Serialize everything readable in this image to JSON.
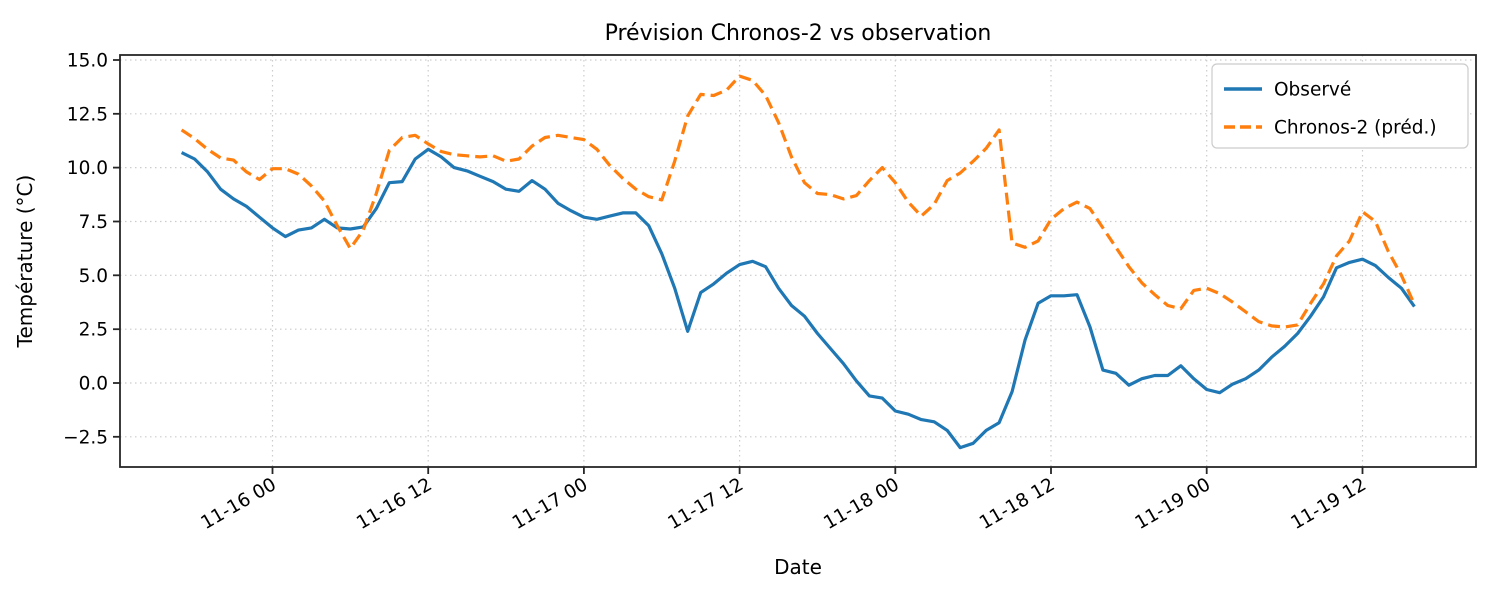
{
  "figure": {
    "background": "#ffffff",
    "spine_color": "#262626",
    "grid_color": "#cccccc",
    "text_color": "#000000"
  },
  "chart_data": {
    "type": "line",
    "title": "Prévision Chronos-2 vs observation",
    "xlabel": "Date",
    "ylabel": "Température (°C)",
    "x_count": 96,
    "x_tick_indices": [
      7,
      19,
      31,
      43,
      55,
      67,
      79,
      91
    ],
    "x_tick_labels": [
      "11-16 00",
      "11-16 12",
      "11-17 00",
      "11-17 12",
      "11-18 00",
      "11-18 12",
      "11-19 00",
      "11-19 12"
    ],
    "y_tick_values": [
      15.0,
      12.5,
      10.0,
      7.5,
      5.0,
      2.5,
      0.0,
      -2.5
    ],
    "y_tick_labels": [
      "15.0",
      "12.5",
      "10.0",
      "7.5",
      "5.0",
      "2.5",
      "0.0",
      "−2.5"
    ],
    "xlim_indices": [
      -4.75,
      99.75
    ],
    "ylim": [
      -3.9,
      15.23
    ],
    "grid": {
      "show": true,
      "style": "dotted",
      "color": "#cccccc"
    },
    "legend": {
      "position": "upper right"
    },
    "series": [
      {
        "name": "Observé",
        "color": "#1f77b4",
        "line_style": "solid",
        "line_width": 3.2,
        "values": [
          10.7,
          10.4,
          9.8,
          9.0,
          8.55,
          8.2,
          7.7,
          7.2,
          6.8,
          7.1,
          7.2,
          7.6,
          7.2,
          7.15,
          7.25,
          8.1,
          9.3,
          9.35,
          10.4,
          10.85,
          10.5,
          10.0,
          9.85,
          9.6,
          9.35,
          9.0,
          8.9,
          9.4,
          9.0,
          8.35,
          8.0,
          7.7,
          7.6,
          7.75,
          7.9,
          7.9,
          7.3,
          6.0,
          4.4,
          2.4,
          4.2,
          4.6,
          5.1,
          5.5,
          5.65,
          5.4,
          4.4,
          3.6,
          3.1,
          2.3,
          1.6,
          0.9,
          0.1,
          -0.6,
          -0.7,
          -1.3,
          -1.45,
          -1.7,
          -1.8,
          -2.2,
          -3.0,
          -2.8,
          -2.2,
          -1.85,
          -0.4,
          2.0,
          3.7,
          4.05,
          4.05,
          4.1,
          2.6,
          0.6,
          0.45,
          -0.1,
          0.2,
          0.35,
          0.35,
          0.8,
          0.2,
          -0.3,
          -0.45,
          -0.05,
          0.2,
          0.6,
          1.2,
          1.7,
          2.3,
          3.1,
          4.0,
          5.35,
          5.6,
          5.75,
          5.45,
          4.9,
          4.4,
          3.55
        ]
      },
      {
        "name": "Chronos-2 (préd.)",
        "color": "#ff7f0e",
        "line_style": "dashed",
        "line_width": 3.2,
        "values": [
          11.75,
          11.35,
          10.85,
          10.45,
          10.35,
          9.8,
          9.45,
          9.95,
          9.95,
          9.7,
          9.15,
          8.45,
          7.3,
          6.25,
          7.1,
          8.8,
          10.8,
          11.4,
          11.5,
          11.1,
          10.75,
          10.6,
          10.55,
          10.5,
          10.55,
          10.3,
          10.4,
          11.0,
          11.4,
          11.5,
          11.4,
          11.3,
          10.85,
          10.1,
          9.5,
          9.0,
          8.65,
          8.5,
          10.3,
          12.4,
          13.4,
          13.35,
          13.6,
          14.25,
          14.05,
          13.35,
          12.1,
          10.5,
          9.3,
          8.8,
          8.75,
          8.55,
          8.7,
          9.4,
          10.0,
          9.3,
          8.4,
          7.75,
          8.3,
          9.4,
          9.75,
          10.3,
          10.9,
          11.75,
          6.5,
          6.3,
          6.6,
          7.6,
          8.1,
          8.4,
          8.1,
          7.2,
          6.3,
          5.4,
          4.65,
          4.1,
          3.6,
          3.45,
          4.3,
          4.4,
          4.15,
          3.75,
          3.3,
          2.85,
          2.65,
          2.6,
          2.7,
          3.7,
          4.6,
          5.9,
          6.6,
          7.95,
          7.5,
          6.1,
          5.0,
          3.65
        ]
      }
    ]
  }
}
